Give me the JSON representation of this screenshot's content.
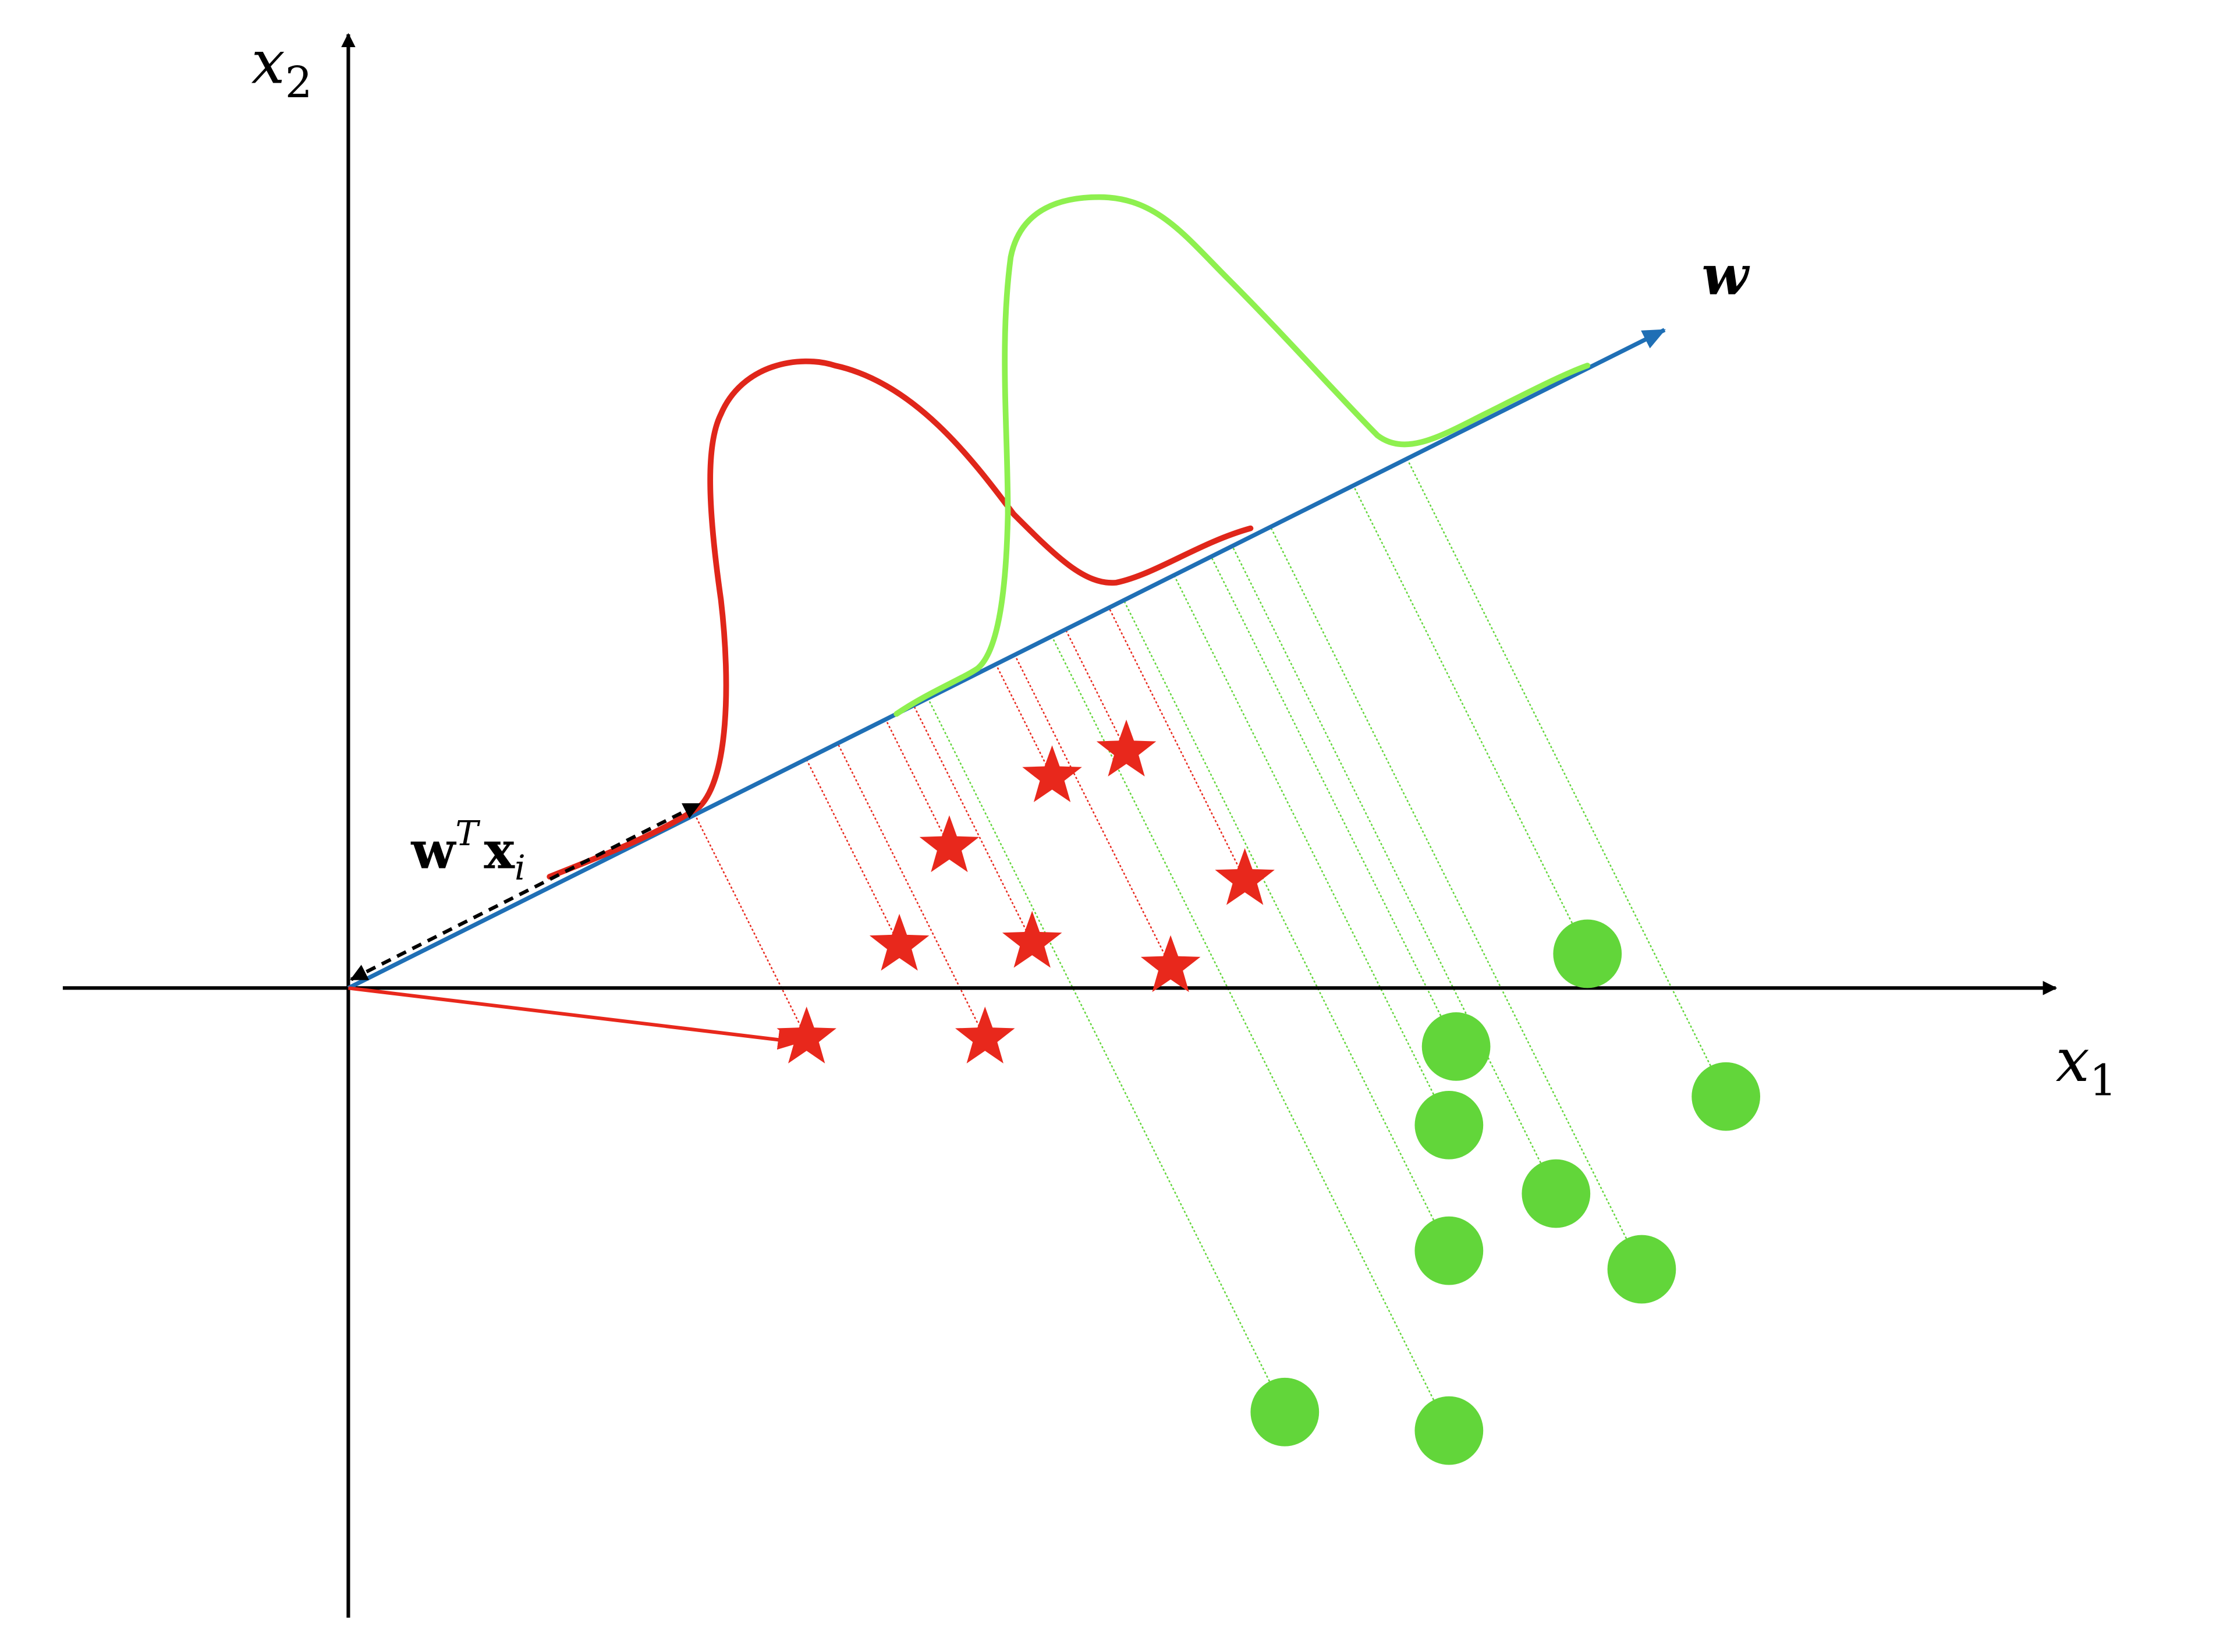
{
  "labels": {
    "x_axis": "x",
    "x_axis_sub": "1",
    "y_axis": "x",
    "y_axis_sub": "2",
    "direction": "w",
    "projection_bold": "w",
    "projection_sup": "T",
    "projection_bold2": "x",
    "projection_sub": "i"
  },
  "colors": {
    "axes": "#000000",
    "w_line": "#1f6fb5",
    "class_a": "#e8281c",
    "class_b": "#62d63a",
    "class_a_curve": "#e0261a",
    "class_b_curve": "#8ef04f"
  },
  "icons": {
    "class_a_marker": "star-icon",
    "class_b_marker": "circle-icon"
  }
}
